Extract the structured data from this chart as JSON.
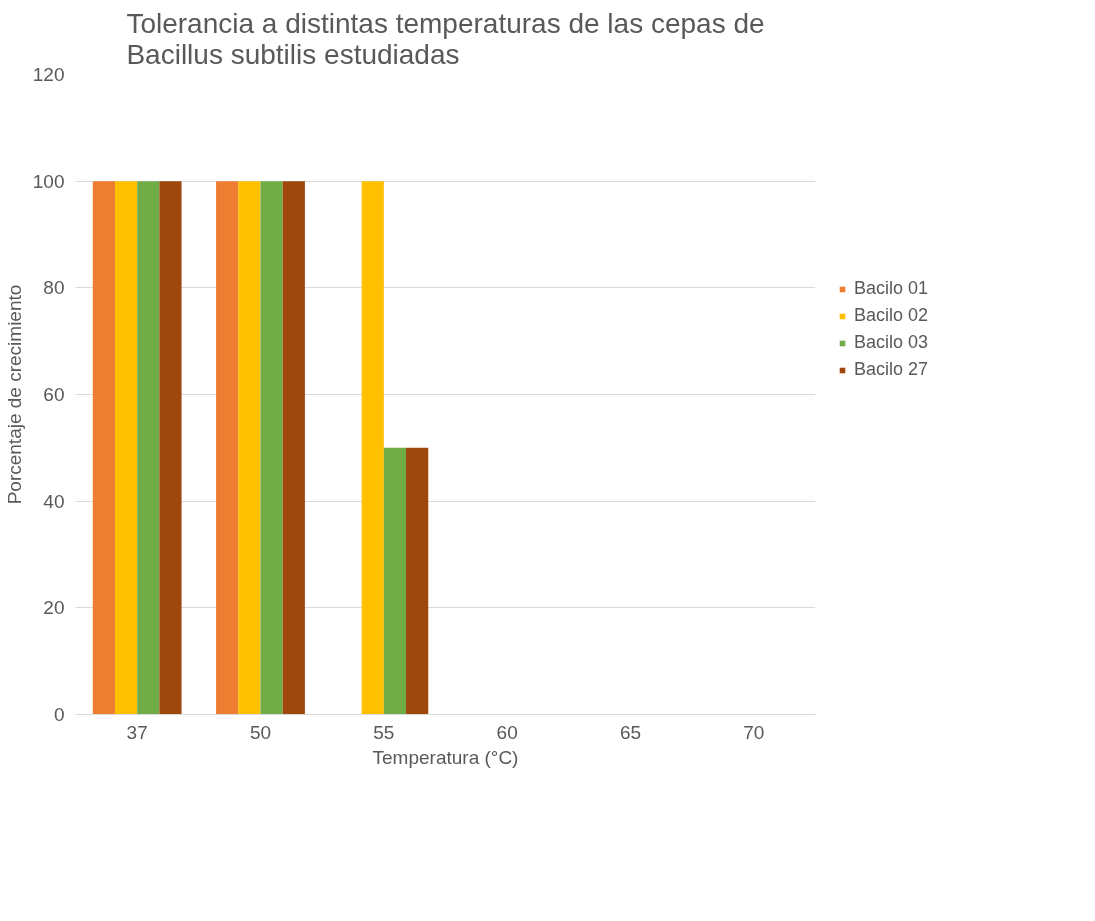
{
  "chart_data": {
    "type": "bar",
    "title": "Tolerancia a distintas temperaturas de las cepas de Bacillus subtilis estudiadas",
    "xlabel": "Temperatura (°C)",
    "ylabel": "Porcentaje de crecimiento",
    "categories": [
      "37",
      "50",
      "55",
      "60",
      "65",
      "70"
    ],
    "series": [
      {
        "name": "Bacilo 01",
        "color": "#ed7d31",
        "values": [
          100,
          100,
          0,
          0,
          0,
          0
        ]
      },
      {
        "name": "Bacilo 02",
        "color": "#ffc000",
        "values": [
          100,
          100,
          100,
          0,
          0,
          0
        ]
      },
      {
        "name": "Bacilo 03",
        "color": "#70ad47",
        "values": [
          100,
          100,
          50,
          0,
          0,
          0
        ]
      },
      {
        "name": "Bacilo 27",
        "color": "#9e480e",
        "values": [
          100,
          100,
          50,
          0,
          0,
          0
        ]
      }
    ],
    "ylim": [
      0,
      120
    ],
    "yticks": [
      0,
      20,
      40,
      60,
      80,
      100,
      120
    ],
    "grid": "y",
    "legend": "right"
  }
}
